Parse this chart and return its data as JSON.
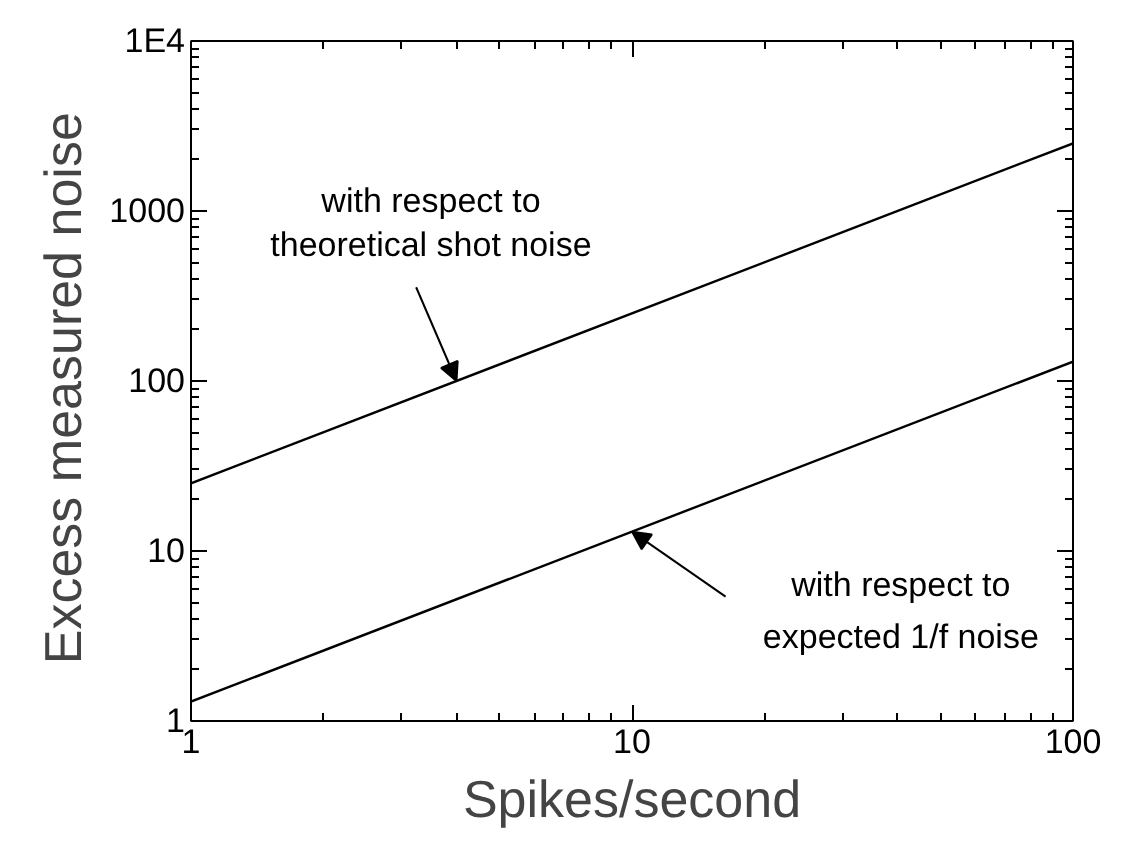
{
  "chart_data": {
    "type": "line",
    "xlabel": "Spikes/second",
    "ylabel": "Excess  measured noise",
    "log": "xy",
    "xlim": [
      1,
      100
    ],
    "ylim": [
      1,
      10000
    ],
    "xticks": [
      1,
      10,
      100
    ],
    "yticks": [
      1,
      10,
      100,
      1000,
      {
        "value": 10000,
        "label": "1E4"
      }
    ],
    "x": [
      1,
      100
    ],
    "series": [
      {
        "color": "#000000",
        "values": [
          25,
          2500
        ]
      },
      {
        "color": "#000000",
        "values": [
          1.3,
          130
        ]
      }
    ],
    "annotations": [
      {
        "text": "with respect to\ntheoretical shot noise",
        "x": 4,
        "y": 100
      },
      {
        "text": "with respect to\nexpected 1/f noise",
        "x": 10,
        "y": 13
      }
    ]
  }
}
